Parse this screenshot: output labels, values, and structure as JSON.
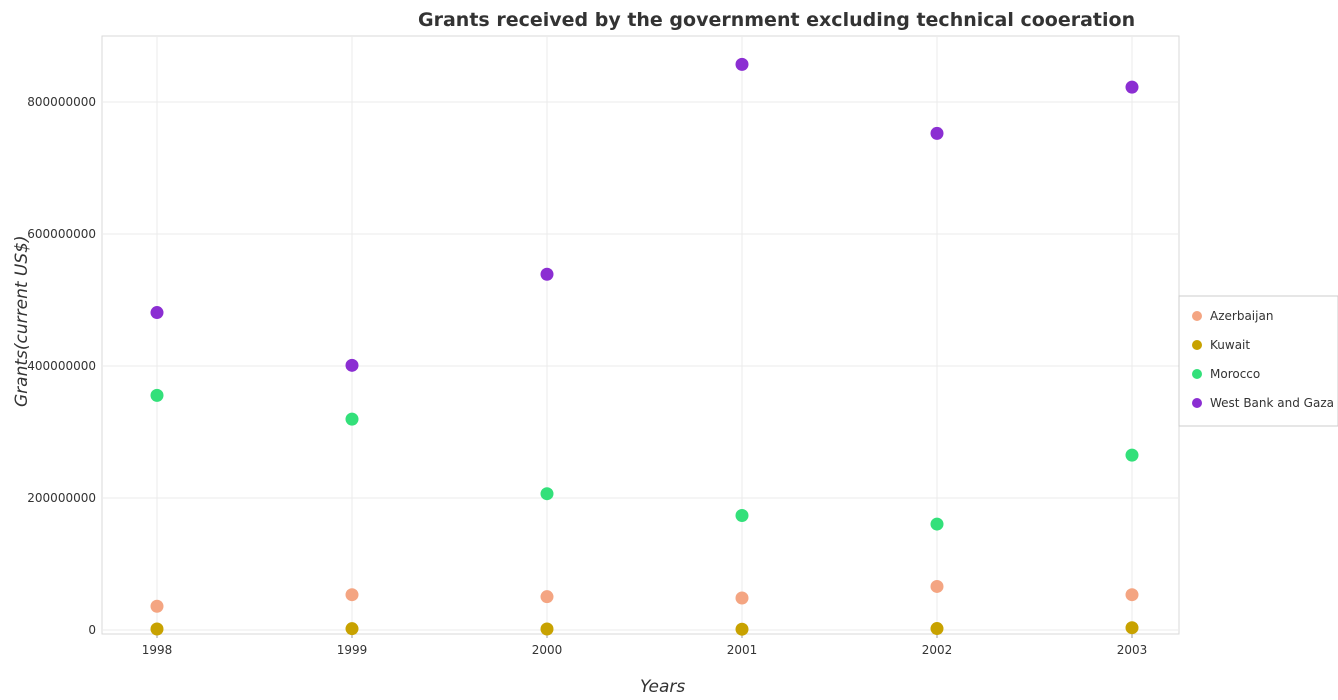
{
  "chart_data": {
    "type": "scatter",
    "title": "Grants received by the government excluding technical cooeration",
    "xlabel": "Years",
    "ylabel": "Grants(current US$)",
    "categories": [
      "1998",
      "1999",
      "2000",
      "2001",
      "2002",
      "2003"
    ],
    "ylim": [
      0,
      900000000
    ],
    "yticks": [
      0,
      200000000,
      400000000,
      600000000,
      800000000
    ],
    "ytick_labels": [
      "0",
      "200000000",
      "400000000",
      "600000000",
      "800000000"
    ],
    "legend_position": "right",
    "grid": true,
    "series": [
      {
        "name": "Azerbaijan",
        "color": "#f4a582",
        "values": [
          36000000,
          53500000,
          50500000,
          48500000,
          66000000,
          53500000
        ]
      },
      {
        "name": "Kuwait",
        "color": "#c8a200",
        "values": [
          1500000,
          2000000,
          1500000,
          1200000,
          2200000,
          3500000
        ]
      },
      {
        "name": "Morocco",
        "color": "#33e07a",
        "values": [
          355500000,
          319500000,
          206500000,
          173500000,
          160500000,
          265000000
        ]
      },
      {
        "name": "West Bank and Gaza",
        "color": "#8b2ed2",
        "values": [
          481000000,
          401000000,
          539000000,
          857000000,
          752500000,
          822500000
        ]
      }
    ]
  }
}
